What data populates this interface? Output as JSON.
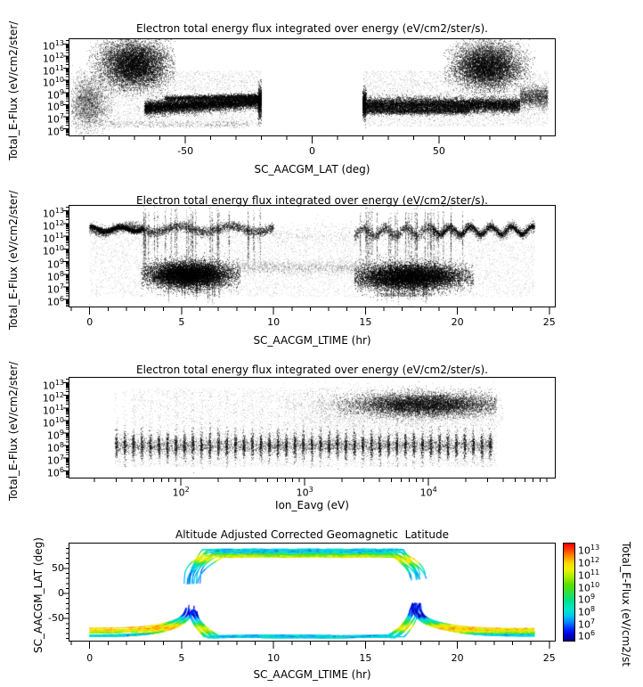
{
  "figure": {
    "background": "#ffffff",
    "foreground": "#000000"
  },
  "colormap": {
    "log_range": [
      5.45,
      13.4
    ],
    "stops": [
      [
        0.0,
        "#00007a"
      ],
      [
        0.06,
        "#0000d0"
      ],
      [
        0.12,
        "#0020ff"
      ],
      [
        0.19,
        "#0080ff"
      ],
      [
        0.26,
        "#00c8f0"
      ],
      [
        0.33,
        "#00e8c8"
      ],
      [
        0.42,
        "#00e08a"
      ],
      [
        0.5,
        "#30e040"
      ],
      [
        0.58,
        "#58e000"
      ],
      [
        0.66,
        "#a8ee00"
      ],
      [
        0.74,
        "#f0f000"
      ],
      [
        0.8,
        "#ffd800"
      ],
      [
        0.87,
        "#ff9000"
      ],
      [
        0.93,
        "#ff4800"
      ],
      [
        1.0,
        "#ff0000"
      ]
    ]
  },
  "chart_data": [
    {
      "type": "scatter",
      "title": "Electron total energy flux integrated over energy (eV/cm2/ster/s).",
      "xlabel": "SC_AACGM_LAT (deg)",
      "ylabel": "Total_E-Flux (eV/cm2/ster/",
      "x_scale": "linear",
      "y_scale": "log",
      "x_range": [
        -95.7,
        95.7
      ],
      "y_range": [
        5.45,
        13.4
      ],
      "x_ticks": [
        -50,
        0,
        50
      ],
      "x_minor_step": 10,
      "y_tick_exponents": [
        6,
        7,
        8,
        9,
        10,
        11,
        12,
        13
      ],
      "clusters": [
        {
          "kind": "band",
          "x": [
            -66,
            -20
          ],
          "yc": 7.7,
          "slope": 0.013,
          "ys": 0.28,
          "n": 9000,
          "alpha": 0.5
        },
        {
          "kind": "band",
          "x": [
            -58,
            -20
          ],
          "yc": 8.5,
          "slope": 0.004,
          "ys": 0.11,
          "n": 2200,
          "alpha": 0.45
        },
        {
          "kind": "gauss",
          "cx": -70,
          "cy": 11.2,
          "sx": 6.5,
          "sy": 0.9,
          "clipx": [
            -88,
            -54
          ],
          "n": 8500,
          "alpha": 0.45
        },
        {
          "kind": "gauss",
          "cx": -71,
          "cy": 12.4,
          "sx": 8,
          "sy": 0.45,
          "clipx": [
            -88,
            -55
          ],
          "n": 1100,
          "alpha": 0.2
        },
        {
          "kind": "gauss",
          "cx": -88,
          "cy": 8.1,
          "sx": 4,
          "sy": 1.1,
          "clipx": [
            -95,
            -77
          ],
          "n": 2400,
          "alpha": 0.3
        },
        {
          "kind": "uniform",
          "x": [
            -93,
            -20
          ],
          "y": [
            6.2,
            10.8
          ],
          "n": 3800,
          "alpha": 0.12
        },
        {
          "kind": "band",
          "x": [
            -21.3,
            -20
          ],
          "yc": 8.2,
          "slope": 0,
          "ys": 0.7,
          "n": 650,
          "alpha": 0.5
        },
        {
          "kind": "uniform",
          "x": [
            -80,
            -25
          ],
          "y": [
            6.1,
            6.6
          ],
          "n": 380,
          "alpha": 0.25
        },
        {
          "kind": "band",
          "x": [
            20,
            82
          ],
          "yc": 7.95,
          "slope": 0,
          "ys": 0.3,
          "n": 9500,
          "alpha": 0.5
        },
        {
          "kind": "band",
          "x": [
            20,
            62
          ],
          "yc": 7.45,
          "slope": 0,
          "ys": 0.14,
          "n": 2300,
          "alpha": 0.4
        },
        {
          "kind": "gauss",
          "cx": 69,
          "cy": 11.1,
          "sx": 6.5,
          "sy": 0.85,
          "clipx": [
            52,
            88
          ],
          "n": 7800,
          "alpha": 0.45
        },
        {
          "kind": "gauss",
          "cx": 70,
          "cy": 12.4,
          "sx": 7,
          "sy": 0.45,
          "clipx": [
            53,
            88
          ],
          "n": 950,
          "alpha": 0.2
        },
        {
          "kind": "uniform",
          "x": [
            20,
            93
          ],
          "y": [
            6.2,
            10.8
          ],
          "n": 3800,
          "alpha": 0.12
        },
        {
          "kind": "band",
          "x": [
            20,
            21.3
          ],
          "yc": 8.1,
          "slope": 0,
          "ys": 0.6,
          "n": 650,
          "alpha": 0.5
        },
        {
          "kind": "band",
          "x": [
            82,
            93
          ],
          "yc": 8.6,
          "slope": 0,
          "ys": 0.45,
          "n": 1400,
          "alpha": 0.35
        }
      ]
    },
    {
      "type": "scatter",
      "title": "Electron total energy flux integrated over energy (eV/cm2/ster/s).",
      "xlabel": "SC_AACGM_LTIME (hr)",
      "ylabel": "Total_E-Flux (eV/cm2/ster/",
      "x_scale": "linear",
      "y_scale": "log",
      "x_range": [
        -1.1,
        25.3
      ],
      "y_range": [
        5.45,
        13.4
      ],
      "x_ticks": [
        0,
        5,
        10,
        15,
        20,
        25
      ],
      "x_minor_step": 1,
      "y_tick_exponents": [
        6,
        7,
        8,
        9,
        10,
        11,
        12,
        13
      ],
      "clusters": [
        {
          "kind": "band",
          "x": [
            0,
            10
          ],
          "yc": 11.55,
          "slope": 0,
          "ys": 0.2,
          "wave": [
            0.22,
            2.8,
            0.5
          ],
          "n": 3600,
          "alpha": 0.4
        },
        {
          "kind": "band",
          "x": [
            0,
            2.9
          ],
          "yc": 11.55,
          "slope": 0,
          "ys": 0.1,
          "wave": [
            0.18,
            1.6,
            0.2
          ],
          "n": 1800,
          "alpha": 0.55
        },
        {
          "kind": "band",
          "x": [
            14.4,
            24.2
          ],
          "yc": 11.3,
          "slope": 0.02,
          "ys": 0.22,
          "wave": [
            0.3,
            1.15,
            0.8
          ],
          "n": 3600,
          "alpha": 0.4
        },
        {
          "kind": "band",
          "x": [
            18.6,
            24.2
          ],
          "yc": 11.45,
          "slope": 0,
          "ys": 0.1,
          "wave": [
            0.32,
            1.1,
            0.3
          ],
          "n": 1600,
          "alpha": 0.5
        },
        {
          "kind": "band",
          "x": [
            10,
            14.4
          ],
          "yc": 11.2,
          "slope": 0,
          "ys": 0.45,
          "n": 330,
          "alpha": 0.14
        },
        {
          "kind": "streaks",
          "x": [
            2.9,
            9.7
          ],
          "count": 27,
          "core": {
            "yc": 11.0,
            "ys": 1.1,
            "n": 55
          },
          "tail": {
            "y": [
              8.4,
              12.9
            ],
            "n": 45
          },
          "alpha": 0.32,
          "tail_alpha": 0.18
        },
        {
          "kind": "streaks",
          "x": [
            14.6,
            20.6
          ],
          "count": 27,
          "core": {
            "yc": 11.0,
            "ys": 1.1,
            "n": 55
          },
          "tail": {
            "y": [
              8.4,
              12.9
            ],
            "n": 45
          },
          "alpha": 0.32,
          "tail_alpha": 0.18
        },
        {
          "kind": "gauss",
          "cx": 5.4,
          "cy": 7.95,
          "sx": 1.15,
          "sy": 0.5,
          "clipx": [
            2.8,
            8.2
          ],
          "n": 12000,
          "alpha": 0.5
        },
        {
          "kind": "gauss",
          "cx": 17.4,
          "cy": 7.8,
          "sx": 1.5,
          "sy": 0.5,
          "clipx": [
            14.4,
            20.9
          ],
          "n": 12500,
          "alpha": 0.5
        },
        {
          "kind": "streaks",
          "x": [
            4.1,
            7.2
          ],
          "count": 11,
          "core": {
            "yc": 7.0,
            "ys": 0.5,
            "n": 45
          },
          "tail": {
            "y": [
              6.2,
              7.6
            ],
            "n": 14
          },
          "alpha": 0.3,
          "tail_alpha": 0.2
        },
        {
          "kind": "streaks",
          "x": [
            15.6,
            18.6
          ],
          "count": 11,
          "core": {
            "yc": 6.9,
            "ys": 0.5,
            "n": 45
          },
          "tail": {
            "y": [
              6.2,
              7.6
            ],
            "n": 14
          },
          "alpha": 0.3,
          "tail_alpha": 0.2
        },
        {
          "kind": "band",
          "x": [
            8,
            15
          ],
          "yc": 8.55,
          "slope": 0,
          "ys": 0.3,
          "n": 1400,
          "alpha": 0.16
        },
        {
          "kind": "uniform",
          "x": [
            0,
            24.2
          ],
          "y": [
            6.2,
            11.2
          ],
          "n": 6500,
          "alpha": 0.11
        },
        {
          "kind": "uniform",
          "x": [
            15.8,
            18.6
          ],
          "y": [
            6.25,
            6.5
          ],
          "n": 230,
          "alpha": 0.3
        }
      ]
    },
    {
      "type": "scatter",
      "title": "Electron total energy flux integrated over energy (eV/cm2/ster/s).",
      "xlabel": "Ion_Eavg (eV)",
      "ylabel": "Total_E-Flux (eV/cm2/ster/",
      "x_scale": "log",
      "y_scale": "log",
      "x_range": [
        1.1,
        5.02
      ],
      "y_range": [
        5.45,
        13.4
      ],
      "x_tick_exponents": [
        2,
        3,
        4
      ],
      "y_tick_exponents": [
        6,
        7,
        8,
        9,
        10,
        11,
        12,
        13
      ],
      "clusters": [
        {
          "kind": "streaks",
          "x": [
            1.48,
            4.5
          ],
          "count": 45,
          "even": true,
          "core": {
            "yc": 8.0,
            "ys": 0.55,
            "n": 150
          },
          "tail": {
            "y": [
              6.3,
              12.4
            ],
            "n": 48
          },
          "alpha": 0.45,
          "tail_alpha": 0.13
        },
        {
          "kind": "band",
          "x": [
            1.48,
            4.52
          ],
          "yc": 7.95,
          "slope": 0.02,
          "ys": 0.32,
          "n": 5000,
          "alpha": 0.32
        },
        {
          "kind": "gauss",
          "cx": 3.97,
          "cy": 11.25,
          "sx": 0.3,
          "sy": 0.45,
          "clipx": [
            3.1,
            4.55
          ],
          "n": 8500,
          "alpha": 0.4
        },
        {
          "kind": "gauss",
          "cx": 3.8,
          "cy": 10.9,
          "sx": 0.55,
          "sy": 0.8,
          "clipx": [
            2.8,
            4.6
          ],
          "n": 2800,
          "alpha": 0.16
        },
        {
          "kind": "uniform",
          "x": [
            1.6,
            4.55
          ],
          "y": [
            8.8,
            12.6
          ],
          "n": 3200,
          "alpha": 0.11
        },
        {
          "kind": "uniform",
          "x": [
            1.5,
            4.55
          ],
          "y": [
            6.3,
            9.0
          ],
          "n": 3200,
          "alpha": 0.11
        }
      ]
    },
    {
      "type": "line",
      "title": "Altitude Adjusted Corrected Geomagnetic  Latitude",
      "xlabel": "SC_AACGM_LTIME (hr)",
      "ylabel": "SC_AACGM_LAT (deg)",
      "x_scale": "linear",
      "y_scale": "linear",
      "x_range": [
        -1.1,
        25.3
      ],
      "y_range": [
        -94,
        99.5
      ],
      "x_ticks": [
        0,
        5,
        10,
        15,
        20,
        25
      ],
      "x_minor_step": 1,
      "y_ticks": [
        -50,
        0,
        50
      ],
      "y_minor_step": 10,
      "traces": {
        "n_orbits": 13,
        "dawn_x": 5.5,
        "dusk_x": 17.75,
        "x_end": 24.2,
        "north": {
          "lat_min": 20,
          "plateau_lat": [
            72,
            88
          ]
        },
        "south": {
          "lat_max": -20,
          "flat_lat": [
            -88,
            -84
          ],
          "tail_lat": [
            -86,
            -68
          ]
        },
        "flux_model": {
          "polar_cap_log": 7.7,
          "auroral_peak_log": 11.4,
          "subauroral_log": 8.3,
          "low_lat_north_log": 7.2,
          "low_lat_south_log": 5.9,
          "night_boost_log": 0.5,
          "noise_log": 1.0
        },
        "line_width": 1.2
      },
      "colorbar": {
        "label": "Total_E-Flux (eV/cm2/st",
        "tick_exponents": [
          6,
          7,
          8,
          9,
          10,
          11,
          12,
          13
        ]
      }
    }
  ]
}
